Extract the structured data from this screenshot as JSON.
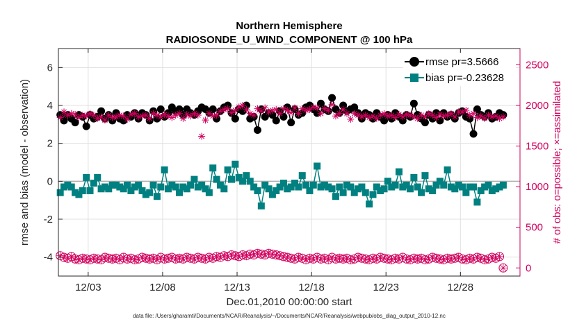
{
  "chart_data": {
    "type": "line",
    "title": "Northern Hemisphere",
    "subtitle": "RADIOSONDE_U_WIND_COMPONENT @ 100 hPa",
    "xlabel": "Dec.01,2010 00:00:00 start",
    "ylabel": "rmse and bias (model - observation)",
    "ylabel_right": "# of obs: o=possible; ×=assimilated",
    "xlim": [
      0,
      31
    ],
    "ylim": [
      -5,
      7
    ],
    "ylim_right": [
      -100,
      2700
    ],
    "x_ticks": [
      {
        "value": 2,
        "label": "12/03"
      },
      {
        "value": 7,
        "label": "12/08"
      },
      {
        "value": 12,
        "label": "12/13"
      },
      {
        "value": 17,
        "label": "12/18"
      },
      {
        "value": 22,
        "label": "12/23"
      },
      {
        "value": 27,
        "label": "12/28"
      }
    ],
    "y_ticks": [
      {
        "value": -4,
        "label": "-4"
      },
      {
        "value": -2,
        "label": "-2"
      },
      {
        "value": 0,
        "label": "0"
      },
      {
        "value": 2,
        "label": "2"
      },
      {
        "value": 4,
        "label": "4"
      },
      {
        "value": 6,
        "label": "6"
      }
    ],
    "y_ticks_right": [
      {
        "value": 0,
        "label": "0"
      },
      {
        "value": 500,
        "label": "500"
      },
      {
        "value": 1000,
        "label": "1000"
      },
      {
        "value": 1500,
        "label": "1500"
      },
      {
        "value": 2000,
        "label": "2000"
      },
      {
        "value": 2500,
        "label": "2500"
      }
    ],
    "grid": true,
    "legend_position": "top-right",
    "legend": [
      {
        "label": "rmse pr=3.5666",
        "series": "rmse"
      },
      {
        "label": "bias pr=-0.23628",
        "series": "bias"
      }
    ],
    "series": [
      {
        "name": "rmse",
        "color": "#000000",
        "marker": "circle",
        "axis": "left",
        "values": [
          3.5,
          3.2,
          3.5,
          3.3,
          3.1,
          3.5,
          3.4,
          2.9,
          3.5,
          3.3,
          3.4,
          3.7,
          3.3,
          3.5,
          3.2,
          3.6,
          3.3,
          3.2,
          3.5,
          3.4,
          3.6,
          3.3,
          3.6,
          3.5,
          3.2,
          3.7,
          3.3,
          3.8,
          3.4,
          3.6,
          3.9,
          3.7,
          3.8,
          3.5,
          3.8,
          3.6,
          3.5,
          3.7,
          3.9,
          3.8,
          3.6,
          3.8,
          3.3,
          3.7,
          3.9,
          4.0,
          3.6,
          3.3,
          3.8,
          3.7,
          4.0,
          3.3,
          3.4,
          2.7,
          3.8,
          3.4,
          3.6,
          3.5,
          3.2,
          3.7,
          3.4,
          3.9,
          3.1,
          3.8,
          3.5,
          3.6,
          3.9,
          4.0,
          3.8,
          3.6,
          4.1,
          3.8,
          3.7,
          4.4,
          3.8,
          3.6,
          4.0,
          3.7,
          3.8,
          3.9,
          3.6,
          3.3,
          3.6,
          3.5,
          3.3,
          3.6,
          3.4,
          3.2,
          3.5,
          3.3,
          3.6,
          3.4,
          3.2,
          3.5,
          3.4,
          4.1,
          3.5,
          3.3,
          3.1,
          3.5,
          3.3,
          3.6,
          3.2,
          3.6,
          3.4,
          3.5,
          3.3,
          3.6,
          3.7,
          3.4,
          3.3,
          2.5,
          3.8,
          3.5,
          3.4,
          3.6,
          3.3,
          3.4,
          3.6,
          3.5
        ],
        "x_step": 0.25
      },
      {
        "name": "bias",
        "color": "#008080",
        "marker": "square",
        "axis": "left",
        "values": [
          -0.6,
          -0.3,
          -0.2,
          -0.3,
          -0.6,
          -0.7,
          -0.5,
          0.2,
          -0.5,
          -0.1,
          0.2,
          -0.4,
          -0.3,
          -0.4,
          -0.2,
          -0.2,
          -0.3,
          -0.4,
          -0.2,
          -0.5,
          -0.3,
          -0.2,
          -0.5,
          -0.7,
          -0.6,
          -0.2,
          -0.8,
          -0.3,
          0.6,
          -0.4,
          -0.2,
          -0.3,
          -0.6,
          -0.3,
          -0.4,
          -0.2,
          0.1,
          -0.3,
          -0.2,
          -0.4,
          -0.6,
          0.7,
          0.1,
          -0.2,
          -0.4,
          0.6,
          0.1,
          0.9,
          0.2,
          0.0,
          0.3,
          0.0,
          -0.3,
          -0.5,
          -1.3,
          -0.2,
          -0.4,
          -0.7,
          -0.5,
          -0.3,
          -0.1,
          -0.4,
          -0.3,
          -0.1,
          -0.3,
          0.3,
          -0.2,
          -0.5,
          -0.2,
          0.8,
          -0.3,
          -0.2,
          -0.3,
          -0.4,
          -0.8,
          -0.3,
          -0.6,
          -0.2,
          -0.3,
          -0.6,
          -0.4,
          -0.3,
          -0.6,
          -1.2,
          -0.7,
          -0.3,
          -0.5,
          -0.4,
          0.0,
          -0.3,
          -0.2,
          0.5,
          -0.3,
          -0.2,
          -0.4,
          0.2,
          -0.3,
          -0.6,
          0.3,
          -0.4,
          -0.5,
          -0.2,
          0.0,
          -0.2,
          0.6,
          -0.3,
          -0.4,
          -0.2,
          -0.3,
          -0.6,
          -0.3,
          -0.3,
          -1.1,
          -0.5,
          -0.3,
          -0.2,
          -0.5,
          -0.4,
          -0.3,
          -0.2
        ],
        "x_step": 0.25
      },
      {
        "name": "obs assimilated",
        "color": "#d1005e",
        "marker": "x",
        "axis": "right",
        "values": [
          1850,
          1920,
          1880,
          1900,
          1890,
          1850,
          1880,
          1870,
          1900,
          1880,
          1840,
          1860,
          1820,
          1880,
          1850,
          1860,
          1880,
          1870,
          1830,
          1890,
          1900,
          1860,
          1870,
          1880,
          1840,
          1900,
          1880,
          1860,
          1890,
          1870,
          1850,
          1880,
          1900,
          1840,
          1890,
          1870,
          1900,
          1880,
          1620,
          1820,
          1900,
          1870,
          1880,
          1930,
          1950,
          1960,
          1910,
          1940,
          1980,
          2000,
          1950,
          1900,
          1880,
          1960,
          1930,
          1970,
          1920,
          1940,
          1950,
          1900,
          1960,
          1940,
          1910,
          1970,
          1900,
          1960,
          1940,
          1950,
          1980,
          1970,
          1900,
          1960,
          1940,
          2010,
          1870,
          1900,
          1950,
          1900,
          1830,
          1900,
          1880,
          1860,
          1880,
          1850,
          1870,
          1840,
          1880,
          1900,
          1870,
          1880,
          1850,
          1890,
          1860,
          1890,
          1880,
          1860,
          1840,
          1880,
          1860,
          1900,
          1880,
          1850,
          1890,
          1870,
          1880,
          1900,
          1860,
          1920,
          1920,
          1940,
          1880,
          1900,
          1850,
          1870,
          1840,
          1880,
          1860,
          1870,
          1840,
          1860
        ],
        "x_step": 0.25
      },
      {
        "name": "obs possible",
        "color": "#d1005e",
        "marker": "circle-open",
        "axis": "right",
        "values": [
          150,
          130,
          120,
          140,
          110,
          100,
          120,
          110,
          100,
          120,
          110,
          100,
          130,
          120,
          110,
          120,
          100,
          130,
          110,
          120,
          100,
          110,
          130,
          120,
          110,
          120,
          100,
          130,
          110,
          120,
          130,
          110,
          120,
          110,
          130,
          120,
          110,
          130,
          120,
          110,
          130,
          120,
          140,
          130,
          150,
          140,
          160,
          150,
          140,
          160,
          150,
          170,
          160,
          180,
          170,
          160,
          180,
          170,
          160,
          150,
          140,
          130,
          120,
          110,
          130,
          120,
          100,
          120,
          110,
          130,
          110,
          120,
          100,
          130,
          110,
          120,
          110,
          120,
          100,
          110,
          130,
          120,
          110,
          100,
          120,
          110,
          130,
          120,
          110,
          100,
          120,
          110,
          130,
          110,
          100,
          120,
          110,
          120,
          100,
          110,
          130,
          120,
          110,
          100,
          120,
          110,
          120,
          130,
          110,
          100,
          120,
          110,
          130,
          120,
          100,
          110,
          130,
          120,
          140,
          0
        ],
        "x_step": 0.25
      }
    ]
  },
  "footnote": "data file: /Users/gharamti/Documents/NCAR/Reanalysis/~/Documents/NCAR/Reanalysis/webpub/obs_diag_output_2010-12.nc"
}
